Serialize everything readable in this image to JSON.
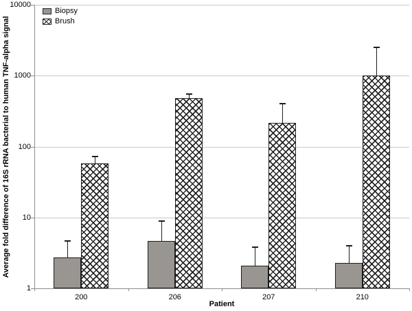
{
  "chart_data": {
    "type": "bar",
    "title": "",
    "xlabel": "Patient",
    "ylabel": "Average fold difference of 16S rRNA bacterial to human TNF-alpha signal",
    "y_scale": "log10",
    "ylim": [
      1,
      10000
    ],
    "y_ticks": [
      1,
      10,
      100,
      1000,
      10000
    ],
    "categories": [
      "200",
      "206",
      "207",
      "210"
    ],
    "series": [
      {
        "name": "Biopsy",
        "pattern": "solid-gray",
        "values": [
          2.7,
          4.7,
          2.1,
          2.3
        ],
        "error_upper": [
          4.7,
          8.8,
          3.8,
          4.0
        ]
      },
      {
        "name": "Brush",
        "pattern": "black-crosshatch-on-white",
        "values": [
          58,
          480,
          215,
          1000
        ],
        "error_upper": [
          72,
          550,
          400,
          2500
        ]
      }
    ],
    "legend": {
      "position": "top-left",
      "entries": [
        "Biopsy",
        "Brush"
      ]
    },
    "grid": "horizontal-decade-gridlines",
    "colors": {
      "biopsy_fill": "#999691",
      "bar_border": "#1c1c1c",
      "gridline": "#c8c8c8",
      "axis": "#8c8c8c",
      "background": "#ffffff",
      "text": "#000000"
    }
  }
}
